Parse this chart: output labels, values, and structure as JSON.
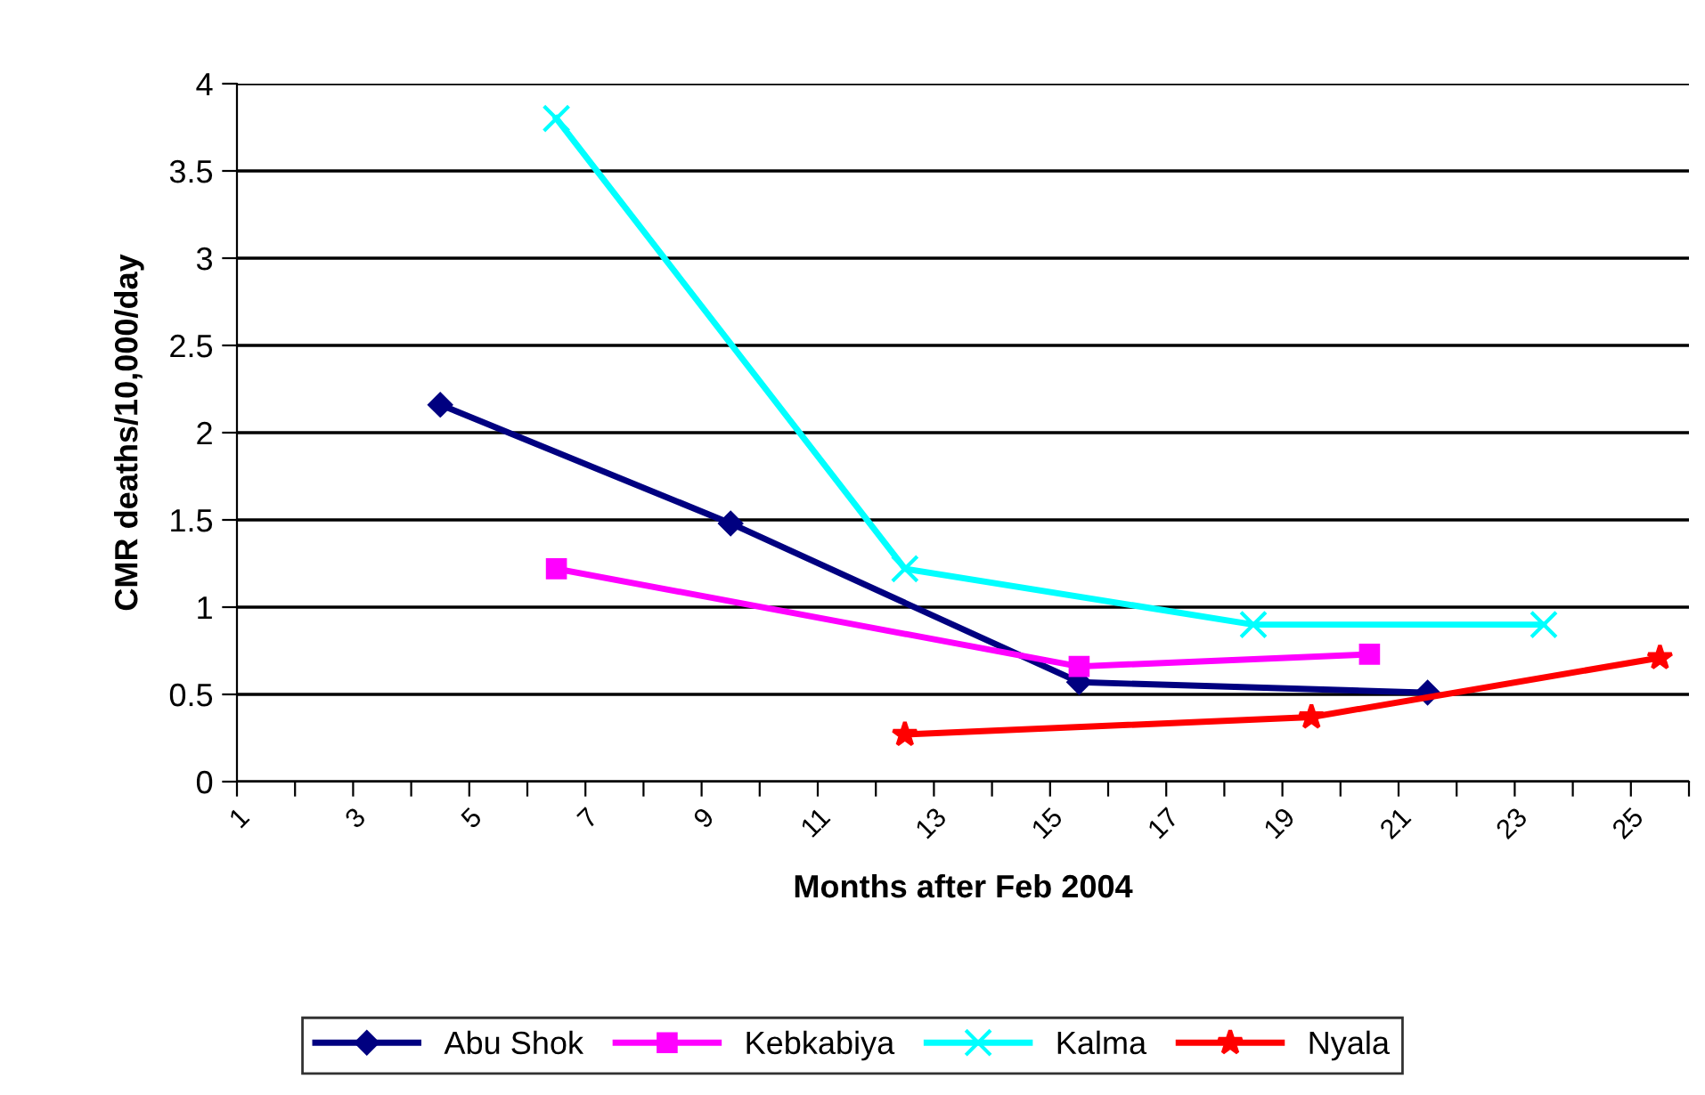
{
  "chart_data": {
    "type": "line",
    "xlabel": "Months after Feb 2004",
    "ylabel": "CMR deaths/10,000/day",
    "xlim": [
      1,
      26
    ],
    "xticks": [
      1,
      {
        "value": 2,
        "label": null
      },
      3,
      {
        "value": 4,
        "label": null
      },
      5,
      {
        "value": 6,
        "label": null
      },
      7,
      {
        "value": 8,
        "label": null
      },
      9,
      {
        "value": 10,
        "label": null
      },
      11,
      {
        "value": 12,
        "label": null
      },
      13,
      {
        "value": 14,
        "label": null
      },
      15,
      {
        "value": 16,
        "label": null
      },
      17,
      {
        "value": 18,
        "label": null
      },
      19,
      {
        "value": 20,
        "label": null
      },
      21,
      {
        "value": 22,
        "label": null
      },
      23,
      {
        "value": 24,
        "label": null
      },
      25,
      {
        "value": 26,
        "label": null
      }
    ],
    "ylim": [
      0,
      4
    ],
    "yticks": [
      0,
      0.5,
      1,
      1.5,
      2,
      2.5,
      3,
      3.5,
      4
    ],
    "grid": "y",
    "legend": "bottom",
    "series": [
      {
        "name": "Abu Shok",
        "color": "#000080",
        "marker": "diamond",
        "x": [
          4.5,
          9.5,
          15.5,
          21.5
        ],
        "values": [
          2.16,
          1.48,
          0.57,
          0.51
        ]
      },
      {
        "name": "Kebkabiya",
        "color": "#ff00ff",
        "marker": "square",
        "x": [
          6.5,
          15.5,
          20.5
        ],
        "values": [
          1.22,
          0.66,
          0.73
        ]
      },
      {
        "name": "Kalma",
        "color": "#00ffff",
        "marker": "cross",
        "x": [
          6.5,
          12.5,
          18.5,
          23.5
        ],
        "values": [
          3.8,
          1.22,
          0.9,
          0.9
        ]
      },
      {
        "name": "Nyala",
        "color": "#ff0000",
        "marker": "star",
        "x": [
          12.5,
          19.5,
          25.5
        ],
        "values": [
          0.27,
          0.37,
          0.71
        ]
      }
    ]
  }
}
